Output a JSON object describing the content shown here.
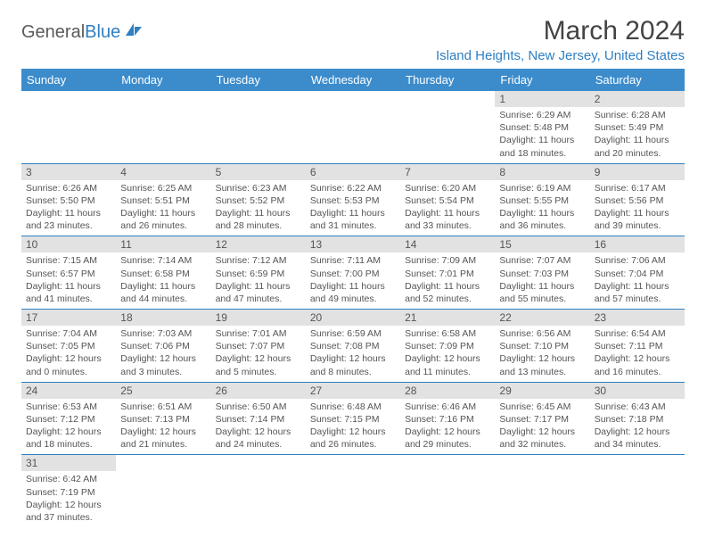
{
  "logo": {
    "text1": "General",
    "text2": "Blue"
  },
  "title": "March 2024",
  "location": "Island Heights, New Jersey, United States",
  "colors": {
    "header_bg": "#3c8ccc",
    "accent": "#2f7fc1",
    "daynum_bg": "#e2e2e2",
    "text": "#555555"
  },
  "weekdays": [
    "Sunday",
    "Monday",
    "Tuesday",
    "Wednesday",
    "Thursday",
    "Friday",
    "Saturday"
  ],
  "weeks": [
    [
      null,
      null,
      null,
      null,
      null,
      {
        "n": "1",
        "sr": "Sunrise: 6:29 AM",
        "ss": "Sunset: 5:48 PM",
        "dl": "Daylight: 11 hours and 18 minutes."
      },
      {
        "n": "2",
        "sr": "Sunrise: 6:28 AM",
        "ss": "Sunset: 5:49 PM",
        "dl": "Daylight: 11 hours and 20 minutes."
      }
    ],
    [
      {
        "n": "3",
        "sr": "Sunrise: 6:26 AM",
        "ss": "Sunset: 5:50 PM",
        "dl": "Daylight: 11 hours and 23 minutes."
      },
      {
        "n": "4",
        "sr": "Sunrise: 6:25 AM",
        "ss": "Sunset: 5:51 PM",
        "dl": "Daylight: 11 hours and 26 minutes."
      },
      {
        "n": "5",
        "sr": "Sunrise: 6:23 AM",
        "ss": "Sunset: 5:52 PM",
        "dl": "Daylight: 11 hours and 28 minutes."
      },
      {
        "n": "6",
        "sr": "Sunrise: 6:22 AM",
        "ss": "Sunset: 5:53 PM",
        "dl": "Daylight: 11 hours and 31 minutes."
      },
      {
        "n": "7",
        "sr": "Sunrise: 6:20 AM",
        "ss": "Sunset: 5:54 PM",
        "dl": "Daylight: 11 hours and 33 minutes."
      },
      {
        "n": "8",
        "sr": "Sunrise: 6:19 AM",
        "ss": "Sunset: 5:55 PM",
        "dl": "Daylight: 11 hours and 36 minutes."
      },
      {
        "n": "9",
        "sr": "Sunrise: 6:17 AM",
        "ss": "Sunset: 5:56 PM",
        "dl": "Daylight: 11 hours and 39 minutes."
      }
    ],
    [
      {
        "n": "10",
        "sr": "Sunrise: 7:15 AM",
        "ss": "Sunset: 6:57 PM",
        "dl": "Daylight: 11 hours and 41 minutes."
      },
      {
        "n": "11",
        "sr": "Sunrise: 7:14 AM",
        "ss": "Sunset: 6:58 PM",
        "dl": "Daylight: 11 hours and 44 minutes."
      },
      {
        "n": "12",
        "sr": "Sunrise: 7:12 AM",
        "ss": "Sunset: 6:59 PM",
        "dl": "Daylight: 11 hours and 47 minutes."
      },
      {
        "n": "13",
        "sr": "Sunrise: 7:11 AM",
        "ss": "Sunset: 7:00 PM",
        "dl": "Daylight: 11 hours and 49 minutes."
      },
      {
        "n": "14",
        "sr": "Sunrise: 7:09 AM",
        "ss": "Sunset: 7:01 PM",
        "dl": "Daylight: 11 hours and 52 minutes."
      },
      {
        "n": "15",
        "sr": "Sunrise: 7:07 AM",
        "ss": "Sunset: 7:03 PM",
        "dl": "Daylight: 11 hours and 55 minutes."
      },
      {
        "n": "16",
        "sr": "Sunrise: 7:06 AM",
        "ss": "Sunset: 7:04 PM",
        "dl": "Daylight: 11 hours and 57 minutes."
      }
    ],
    [
      {
        "n": "17",
        "sr": "Sunrise: 7:04 AM",
        "ss": "Sunset: 7:05 PM",
        "dl": "Daylight: 12 hours and 0 minutes."
      },
      {
        "n": "18",
        "sr": "Sunrise: 7:03 AM",
        "ss": "Sunset: 7:06 PM",
        "dl": "Daylight: 12 hours and 3 minutes."
      },
      {
        "n": "19",
        "sr": "Sunrise: 7:01 AM",
        "ss": "Sunset: 7:07 PM",
        "dl": "Daylight: 12 hours and 5 minutes."
      },
      {
        "n": "20",
        "sr": "Sunrise: 6:59 AM",
        "ss": "Sunset: 7:08 PM",
        "dl": "Daylight: 12 hours and 8 minutes."
      },
      {
        "n": "21",
        "sr": "Sunrise: 6:58 AM",
        "ss": "Sunset: 7:09 PM",
        "dl": "Daylight: 12 hours and 11 minutes."
      },
      {
        "n": "22",
        "sr": "Sunrise: 6:56 AM",
        "ss": "Sunset: 7:10 PM",
        "dl": "Daylight: 12 hours and 13 minutes."
      },
      {
        "n": "23",
        "sr": "Sunrise: 6:54 AM",
        "ss": "Sunset: 7:11 PM",
        "dl": "Daylight: 12 hours and 16 minutes."
      }
    ],
    [
      {
        "n": "24",
        "sr": "Sunrise: 6:53 AM",
        "ss": "Sunset: 7:12 PM",
        "dl": "Daylight: 12 hours and 18 minutes."
      },
      {
        "n": "25",
        "sr": "Sunrise: 6:51 AM",
        "ss": "Sunset: 7:13 PM",
        "dl": "Daylight: 12 hours and 21 minutes."
      },
      {
        "n": "26",
        "sr": "Sunrise: 6:50 AM",
        "ss": "Sunset: 7:14 PM",
        "dl": "Daylight: 12 hours and 24 minutes."
      },
      {
        "n": "27",
        "sr": "Sunrise: 6:48 AM",
        "ss": "Sunset: 7:15 PM",
        "dl": "Daylight: 12 hours and 26 minutes."
      },
      {
        "n": "28",
        "sr": "Sunrise: 6:46 AM",
        "ss": "Sunset: 7:16 PM",
        "dl": "Daylight: 12 hours and 29 minutes."
      },
      {
        "n": "29",
        "sr": "Sunrise: 6:45 AM",
        "ss": "Sunset: 7:17 PM",
        "dl": "Daylight: 12 hours and 32 minutes."
      },
      {
        "n": "30",
        "sr": "Sunrise: 6:43 AM",
        "ss": "Sunset: 7:18 PM",
        "dl": "Daylight: 12 hours and 34 minutes."
      }
    ],
    [
      {
        "n": "31",
        "sr": "Sunrise: 6:42 AM",
        "ss": "Sunset: 7:19 PM",
        "dl": "Daylight: 12 hours and 37 minutes."
      },
      null,
      null,
      null,
      null,
      null,
      null
    ]
  ]
}
